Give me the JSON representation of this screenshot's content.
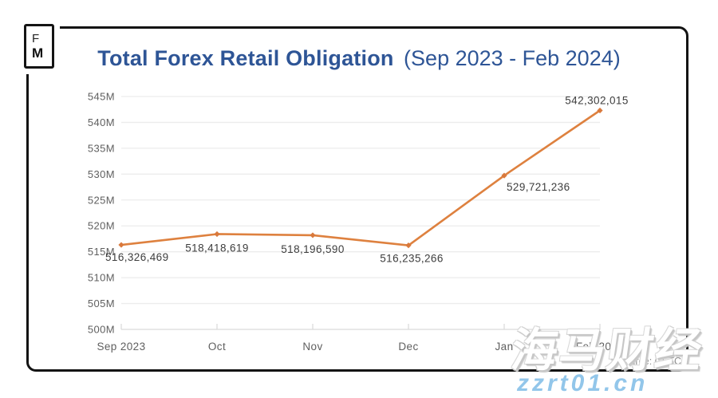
{
  "header": {
    "logo_top": "F",
    "logo_bottom": "M",
    "title": "Total Forex Retail Obligation",
    "subtitle": "(Sep 2023 - Feb 2024)",
    "title_color": "#2E5596"
  },
  "footer": {
    "source": "Source: CFTC"
  },
  "watermark": {
    "text": "海马财经",
    "url": "zzrt01.cn",
    "url_color": "#92C6EA"
  },
  "chart_data": {
    "type": "line",
    "title": "Total Forex Retail Obligation (Sep 2023 - Feb 2024)",
    "categories": [
      "Sep 2023",
      "Oct",
      "Nov",
      "Dec",
      "Jan",
      "Feb 2024"
    ],
    "series": [
      {
        "name": "Total Forex Retail Obligation",
        "values": [
          516326469,
          518418619,
          518196590,
          516235266,
          529721236,
          542302015
        ]
      }
    ],
    "point_labels": [
      "516,326,469",
      "518,418,619",
      "518,196,590",
      "516,235,266",
      "529,721,236",
      "542,302,015"
    ],
    "xlabel": "",
    "ylabel": "",
    "ylim": [
      500000000,
      545000000
    ],
    "ytick_step": 5000000,
    "ytick_labels": [
      "545M",
      "540M",
      "535M",
      "530M",
      "525M",
      "520M",
      "515M",
      "510M",
      "505M",
      "500M"
    ],
    "grid": "horizontal",
    "legend": "none",
    "line_color": "#DE813F",
    "marker_color": "#D9793C",
    "gridline_color": "#ECECEC",
    "baseline_color": "#D9D9D9",
    "axis_label_color": "#5F5F5F",
    "data_label_color": "#3D3D3D"
  }
}
